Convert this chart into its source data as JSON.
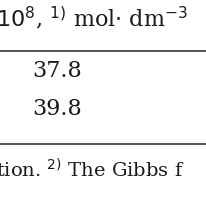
{
  "header_text": "$10^{8}$, $^{1)}$ mol$\\cdot$ dm$^{-3}$",
  "row1": "37.8",
  "row2": "39.8",
  "footer_text": "tion. $^{2)}$ The Gibbs f",
  "bg_color": "#ffffff",
  "text_color": "#1a1a1a",
  "line_color": "#333333",
  "font_size": 16,
  "footer_font_size": 14,
  "fig_width": 2.07,
  "fig_height": 2.07,
  "dpi": 100
}
